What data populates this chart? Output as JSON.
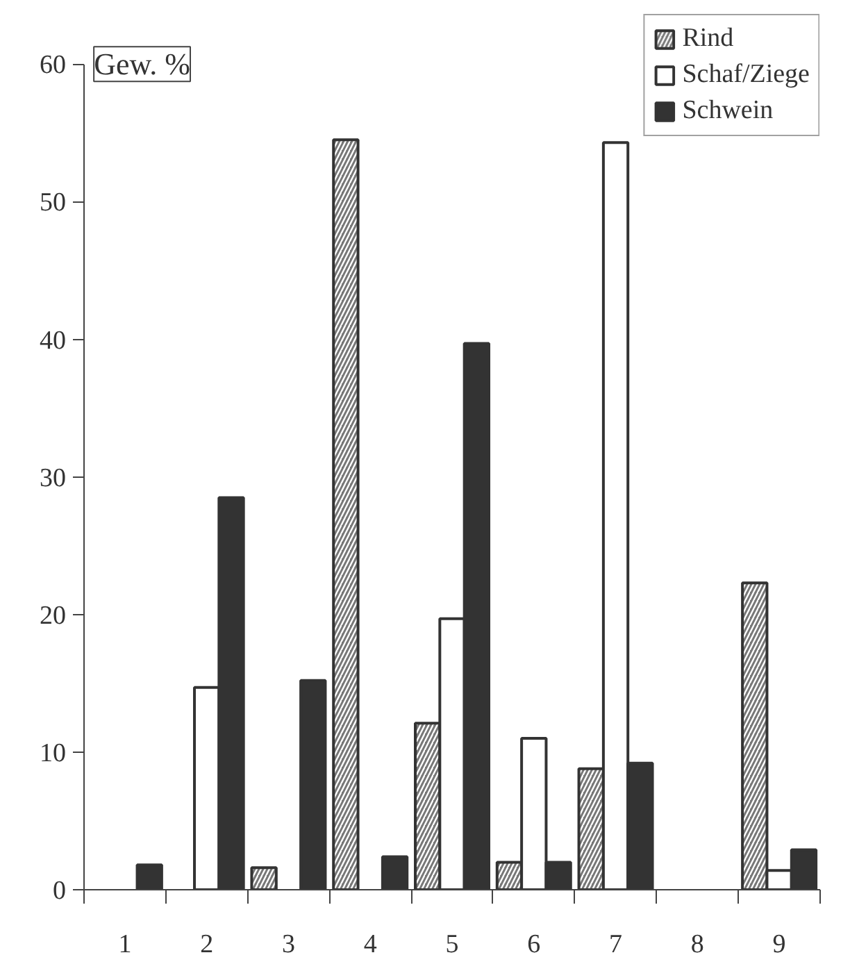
{
  "chart_data": {
    "type": "bar",
    "ylabel": "Gew. %",
    "categories": [
      "1",
      "2",
      "3",
      "4",
      "5",
      "6",
      "7",
      "8",
      "9"
    ],
    "series": [
      {
        "name": "Rind",
        "color": "#777777",
        "values": [
          null,
          null,
          1.6,
          54.5,
          12.1,
          2.0,
          8.8,
          null,
          22.3
        ]
      },
      {
        "name": "Schaf/Ziege",
        "color": "#ffffff",
        "values": [
          null,
          14.7,
          null,
          null,
          19.7,
          11.0,
          54.3,
          null,
          1.4
        ]
      },
      {
        "name": "Schwein",
        "color": "#333333",
        "values": [
          1.8,
          28.5,
          15.2,
          2.4,
          39.7,
          2.0,
          9.2,
          null,
          2.9
        ]
      }
    ],
    "ylim": [
      0,
      60
    ],
    "yticks": [
      0,
      10,
      20,
      30,
      40,
      50,
      60
    ],
    "grid": false,
    "legend": "top right"
  }
}
